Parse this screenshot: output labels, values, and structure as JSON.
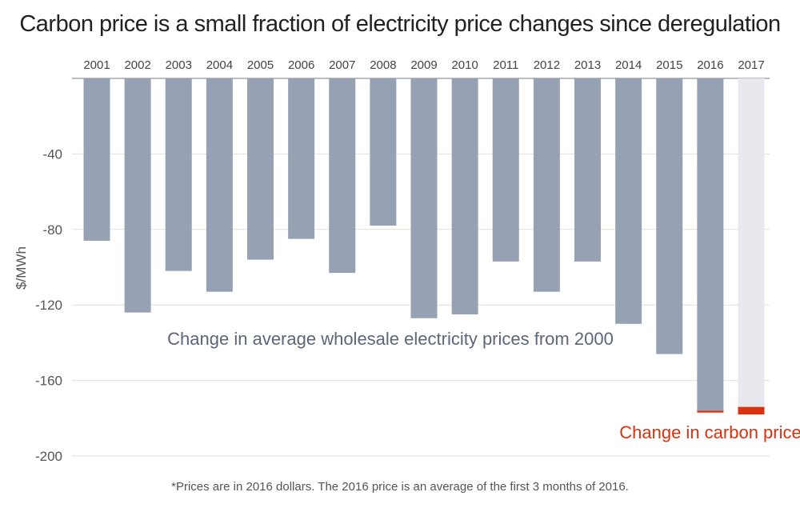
{
  "chart_data": {
    "type": "bar",
    "title": "Carbon price is a small fraction of electricity price changes since deregulation",
    "ylabel": "$/MWh",
    "xlabel": "",
    "ylim": [
      -200,
      0
    ],
    "yticks": [
      -40,
      -80,
      -120,
      -160,
      -200
    ],
    "categories": [
      "2001",
      "2002",
      "2003",
      "2004",
      "2005",
      "2006",
      "2007",
      "2008",
      "2009",
      "2010",
      "2011",
      "2012",
      "2013",
      "2014",
      "2015",
      "2016",
      "2017"
    ],
    "series": [
      {
        "name": "Change in average wholesale electricity prices from 2000",
        "color": "#96a2b4",
        "values": [
          -86,
          -124,
          -102,
          -113,
          -96,
          -85,
          -103,
          -78,
          -127,
          -125,
          -97,
          -113,
          -97,
          -130,
          -146,
          -176,
          null
        ]
      },
      {
        "name": "Change in carbon price",
        "color": "#d9320e",
        "values": [
          0,
          0,
          0,
          0,
          0,
          0,
          0,
          0,
          0,
          0,
          0,
          0,
          0,
          0,
          0,
          -1,
          -4
        ]
      }
    ],
    "projected_background": {
      "category": "2017",
      "color": "#e8e9ee",
      "value": -178
    },
    "annotations": {
      "main": "Change in average wholesale electricity prices from 2000",
      "carbon": "Change in carbon price"
    },
    "grid": true,
    "grid_color": "#e2e1d6",
    "axis_color": "#8d96a8"
  },
  "footnote": "*Prices are in 2016 dollars. The 2016 price is an average of the first 3 months of 2016."
}
